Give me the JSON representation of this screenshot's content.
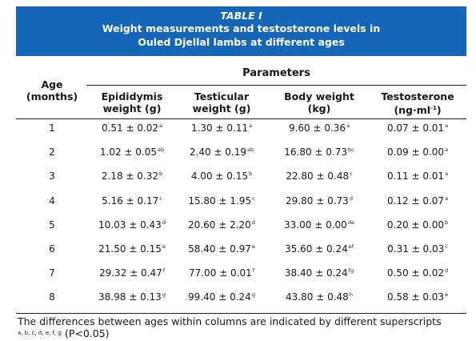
{
  "table": {
    "label": "TABLE I",
    "title_line1": "Weight measurements and testosterone levels in",
    "title_line2": "Ouled Djellal lambs at different ages",
    "parameters_header": "Parameters",
    "columns": {
      "age": [
        "Age",
        "(months)"
      ],
      "epididymis": [
        "Epididymis",
        "weight (g)"
      ],
      "testicular": [
        "Testicular",
        "weight (g)"
      ],
      "body": [
        "Body weight",
        "(kg)"
      ],
      "testosterone_line1": "Testosterone",
      "testosterone_unit": "(ng·ml",
      "testosterone_exp": "-1",
      "testosterone_close": ")"
    },
    "rows": [
      {
        "age": "1",
        "epi": "0.51 ± 0.02",
        "epi_s": "a",
        "tes": "1.30 ± 0.11",
        "tes_s": "a",
        "bw": "9.60 ± 0.36",
        "bw_s": "a",
        "tst": "0.07 ± 0.01",
        "tst_s": "a"
      },
      {
        "age": "2",
        "epi": "1.02 ± 0.05",
        "epi_s": "ab",
        "tes": "2.40 ± 0.19",
        "tes_s": "ab",
        "bw": "16.80 ± 0.73",
        "bw_s": "bc",
        "tst": "0.09 ± 0.00",
        "tst_s": "a"
      },
      {
        "age": "3",
        "epi": "2.18 ± 0.32",
        "epi_s": "b",
        "tes": "4.00 ± 0.15",
        "tes_s": "b",
        "bw": "22.80 ± 0.48",
        "bw_s": "c",
        "tst": "0.11 ± 0.01",
        "tst_s": "a"
      },
      {
        "age": "4",
        "epi": "5.16 ± 0.17",
        "epi_s": "c",
        "tes": "15.80 ± 1.95",
        "tes_s": "c",
        "bw": "29.80 ± 0.73",
        "bw_s": "d",
        "tst": "0.12 ± 0.07",
        "tst_s": "a"
      },
      {
        "age": "5",
        "epi": "10.03 ± 0.43",
        "epi_s": "d",
        "tes": "20.60 ± 2.20",
        "tes_s": "d",
        "bw": "33.00 ± 0.00",
        "bw_s": "de",
        "tst": "0.20 ± 0.00",
        "tst_s": "b"
      },
      {
        "age": "6",
        "epi": "21.50 ± 0.15",
        "epi_s": "e",
        "tes": "58.40 ± 0.97",
        "tes_s": "e",
        "bw": "35.60 ± 0.24",
        "bw_s": "ef",
        "tst": "0.31 ± 0.03",
        "tst_s": "c"
      },
      {
        "age": "7",
        "epi": "29.32 ± 0.47",
        "epi_s": "f",
        "tes": "77.00 ± 0.01",
        "tes_s": "f",
        "bw": "38.40 ± 0.24",
        "bw_s": "fg",
        "tst": "0.50 ± 0.02",
        "tst_s": "d"
      },
      {
        "age": "8",
        "epi": "38.98 ± 0.13",
        "epi_s": "g",
        "tes": "99.40 ± 0.24",
        "tes_s": "g",
        "bw": "43.80 ± 0.48",
        "bw_s": "h",
        "tst": "0.58 ± 0.03",
        "tst_s": "e"
      }
    ],
    "footnote_text": "The differences between ages within columns are indicated by different superscripts",
    "footnote_sups": "a, b, c, d, e, f, g",
    "footnote_p": "(P<0.05)",
    "banner_color": "#1565b8"
  }
}
